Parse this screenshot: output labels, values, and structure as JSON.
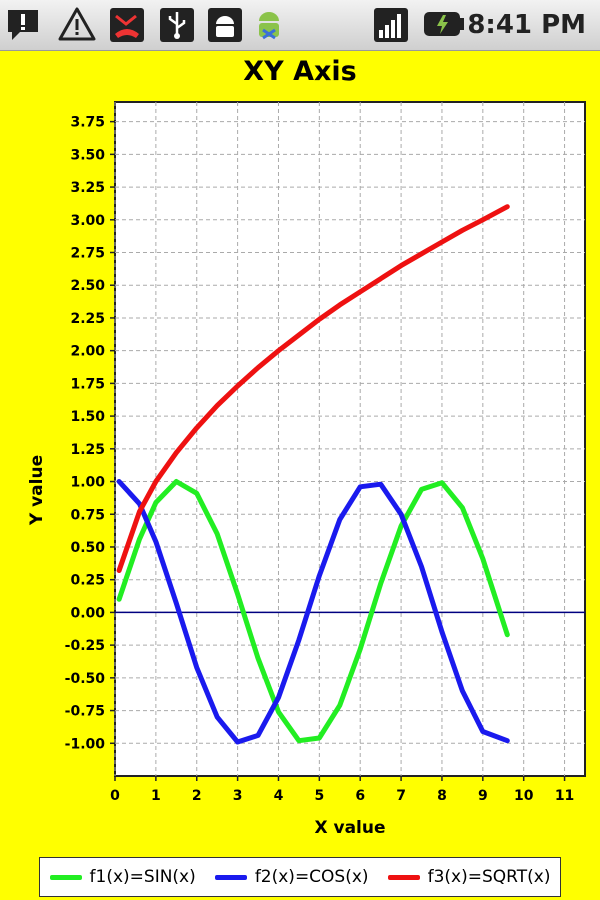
{
  "status_bar": {
    "icons": [
      "speech-bubble-alert-icon",
      "warning-icon",
      "missed-call-icon",
      "usb-icon",
      "android-robot-icon",
      "android-debug-icon",
      "signal-strength-icon",
      "battery-charging-icon"
    ],
    "time": "8:41 PM"
  },
  "colors": {
    "background": "#ffff00",
    "sin": "#22ee22",
    "cos": "#1a1aee",
    "sqrt": "#ee1111",
    "zero_line": "#000080"
  },
  "chart_data": {
    "type": "line",
    "title": "XY Axis",
    "xlabel": "X value",
    "ylabel": "Y value",
    "xlim": [
      0,
      11.5
    ],
    "ylim": [
      -1.25,
      3.9
    ],
    "x_ticks": [
      "0",
      "1",
      "2",
      "3",
      "4",
      "5",
      "6",
      "7",
      "8",
      "9",
      "10",
      "11"
    ],
    "y_ticks": [
      "3.75",
      "3.50",
      "3.25",
      "3.00",
      "2.75",
      "2.50",
      "2.25",
      "2.00",
      "1.75",
      "1.50",
      "1.25",
      "1.00",
      "0.75",
      "0.50",
      "0.25",
      "0.00",
      "-0.25",
      "-0.50",
      "-0.75",
      "-1.00"
    ],
    "grid": true,
    "legend_position": "bottom",
    "x": [
      0.1,
      0.6,
      1.0,
      1.5,
      2.0,
      2.5,
      3.0,
      3.5,
      4.0,
      4.5,
      5.0,
      5.5,
      6.0,
      6.5,
      7.0,
      7.5,
      8.0,
      8.5,
      9.0,
      9.6
    ],
    "series": [
      {
        "name": "f1(x)=SIN(x)",
        "color": "#22ee22",
        "values": [
          0.1,
          0.56,
          0.84,
          1.0,
          0.91,
          0.6,
          0.14,
          -0.35,
          -0.76,
          -0.98,
          -0.96,
          -0.71,
          -0.28,
          0.22,
          0.66,
          0.94,
          0.99,
          0.8,
          0.41,
          -0.17
        ]
      },
      {
        "name": "f2(x)=COS(x)",
        "color": "#1a1aee",
        "values": [
          1.0,
          0.83,
          0.54,
          0.07,
          -0.42,
          -0.8,
          -0.99,
          -0.94,
          -0.65,
          -0.21,
          0.28,
          0.71,
          0.96,
          0.98,
          0.75,
          0.35,
          -0.15,
          -0.6,
          -0.91,
          -0.98
        ]
      },
      {
        "name": "f3(x)=SQRT(x)",
        "color": "#ee1111",
        "values": [
          0.32,
          0.77,
          1.0,
          1.22,
          1.41,
          1.58,
          1.73,
          1.87,
          2.0,
          2.12,
          2.24,
          2.35,
          2.45,
          2.55,
          2.65,
          2.74,
          2.83,
          2.92,
          3.0,
          3.1
        ]
      }
    ]
  }
}
